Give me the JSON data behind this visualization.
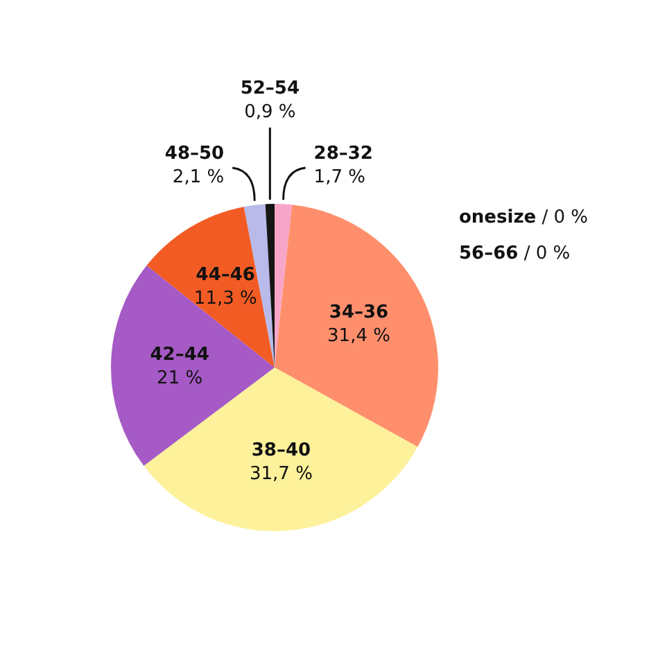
{
  "chart_data": {
    "type": "pie",
    "categories": [
      "28–32",
      "34–36",
      "38–40",
      "42–44",
      "44–46",
      "48–50",
      "52–54",
      "onesize",
      "56–66"
    ],
    "values": [
      1.7,
      31.4,
      31.7,
      21,
      11.3,
      2.1,
      0.9,
      0,
      0
    ],
    "value_labels": [
      "1,7 %",
      "31,4 %",
      "31,7 %",
      "21 %",
      "11,3 %",
      "2,1 %",
      "0,9 %",
      "/ 0 %",
      "/ 0 %"
    ],
    "colors": [
      "#f7a6c8",
      "#ff8f6c",
      "#fdf19b",
      "#a55ac6",
      "#f25c24",
      "#b9b9ea",
      "#151515",
      "#888888",
      "#888888"
    ],
    "legend": false
  }
}
